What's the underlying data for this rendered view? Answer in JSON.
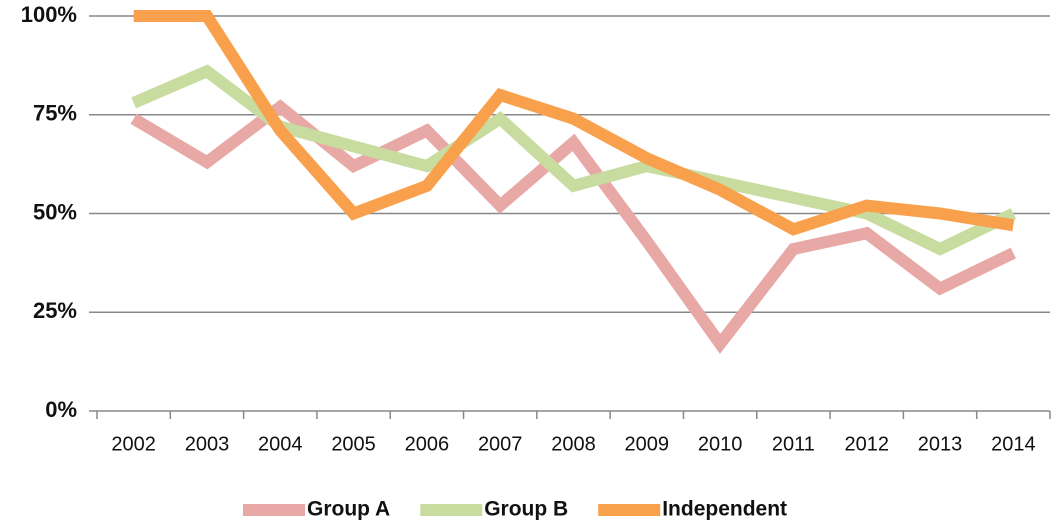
{
  "chart_data": {
    "type": "line",
    "categories": [
      "2002",
      "2003",
      "2004",
      "2005",
      "2006",
      "2007",
      "2008",
      "2009",
      "2010",
      "2011",
      "2012",
      "2013",
      "2014"
    ],
    "series": [
      {
        "name": "Group A",
        "color": "#e8a9a6",
        "values": [
          74,
          63,
          77,
          62,
          71,
          52,
          68,
          43,
          17,
          41,
          45,
          31,
          40
        ]
      },
      {
        "name": "Group B",
        "color": "#c8dca0",
        "values": [
          78,
          86,
          72,
          67,
          62,
          74,
          57,
          62,
          58,
          54,
          50,
          41,
          50
        ]
      },
      {
        "name": "Independent",
        "color": "#f9a04c",
        "values": [
          100,
          100,
          71,
          50,
          57,
          80,
          74,
          64,
          56,
          46,
          52,
          50,
          47
        ]
      }
    ],
    "ylim": [
      0,
      100
    ],
    "yticks": [
      {
        "value": 0,
        "label": "0%"
      },
      {
        "value": 25,
        "label": "25%"
      },
      {
        "value": 50,
        "label": "50%"
      },
      {
        "value": 75,
        "label": "75%"
      },
      {
        "value": 100,
        "label": "100%"
      }
    ],
    "grid": true,
    "legend": "bottom"
  }
}
